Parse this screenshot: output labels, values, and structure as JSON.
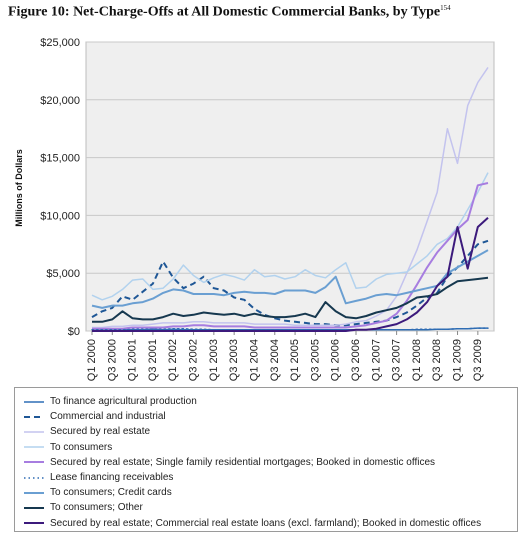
{
  "figure": {
    "title": "Figure 10: Net-Charge-Offs at All Domestic Commercial Banks, by Type",
    "footnote_mark": "154"
  },
  "chart_data": {
    "type": "line",
    "title": "Figure 10: Net-Charge-Offs at All Domestic Commercial Banks, by Type",
    "ylabel": "Millions of Dollars",
    "xlabel": "",
    "ylim": [
      0,
      25000
    ],
    "yticks": [
      0,
      5000,
      10000,
      15000,
      20000,
      25000
    ],
    "ytick_labels": [
      "$0",
      "$5,000",
      "$10,000",
      "$15,000",
      "$20,000",
      "$25,000"
    ],
    "grid": true,
    "legend_position": "bottom",
    "xtick_labels": [
      "Q1 2000",
      "Q3 2000",
      "Q1 2001",
      "Q3 2001",
      "Q1 2002",
      "Q3 2002",
      "Q1 2003",
      "Q3 2003",
      "Q1 2004",
      "Q3 2004",
      "Q1 2005",
      "Q3 2005",
      "Q1 2006",
      "Q3 2006",
      "Q1 2007",
      "Q3 2007",
      "Q1 2008",
      "Q3 2008",
      "Q1 2009",
      "Q3 2009"
    ],
    "x": [
      "Q1 2000",
      "Q2 2000",
      "Q3 2000",
      "Q4 2000",
      "Q1 2001",
      "Q2 2001",
      "Q3 2001",
      "Q4 2001",
      "Q1 2002",
      "Q2 2002",
      "Q3 2002",
      "Q4 2002",
      "Q1 2003",
      "Q2 2003",
      "Q3 2003",
      "Q4 2003",
      "Q1 2004",
      "Q2 2004",
      "Q3 2004",
      "Q4 2004",
      "Q1 2005",
      "Q2 2005",
      "Q3 2005",
      "Q4 2005",
      "Q1 2006",
      "Q2 2006",
      "Q3 2006",
      "Q4 2006",
      "Q1 2007",
      "Q2 2007",
      "Q3 2007",
      "Q4 2007",
      "Q1 2008",
      "Q2 2008",
      "Q3 2008",
      "Q4 2008",
      "Q1 2009",
      "Q2 2009",
      "Q3 2009",
      "Q4 2009"
    ],
    "series": [
      {
        "name": "To finance agricultural production",
        "color": "#2e6fb5",
        "dash": "solid",
        "width": 1.5,
        "values": [
          100,
          100,
          100,
          100,
          100,
          100,
          150,
          100,
          150,
          100,
          100,
          100,
          100,
          100,
          100,
          100,
          100,
          100,
          100,
          100,
          100,
          100,
          100,
          100,
          100,
          100,
          100,
          100,
          100,
          100,
          100,
          100,
          100,
          100,
          150,
          150,
          200,
          200,
          250,
          250
        ]
      },
      {
        "name": "Commercial and industrial",
        "color": "#1f5796",
        "dash": "dashed",
        "width": 2,
        "values": [
          1200,
          1700,
          2000,
          3000,
          2700,
          3400,
          4100,
          6000,
          4600,
          3700,
          4100,
          4700,
          3700,
          3500,
          2900,
          2700,
          1900,
          1400,
          1100,
          900,
          800,
          700,
          600,
          600,
          500,
          500,
          600,
          700,
          800,
          900,
          1200,
          1600,
          2200,
          2900,
          3300,
          4700,
          5500,
          6500,
          7500,
          7800
        ]
      },
      {
        "name": "Secured by real estate",
        "color": "#c3c3ee",
        "dash": "solid",
        "width": 1.5,
        "values": [
          300,
          300,
          400,
          400,
          500,
          500,
          600,
          700,
          700,
          700,
          800,
          800,
          700,
          700,
          700,
          700,
          600,
          600,
          600,
          600,
          500,
          500,
          500,
          500,
          500,
          600,
          800,
          900,
          1300,
          1800,
          3000,
          5000,
          7000,
          9500,
          12000,
          17500,
          14500,
          19500,
          21500,
          22800
        ]
      },
      {
        "name": "To consumers",
        "color": "#b2d2ee",
        "dash": "solid",
        "width": 1.5,
        "values": [
          3100,
          2700,
          3000,
          3600,
          4400,
          4500,
          3600,
          3700,
          4500,
          5700,
          4800,
          4200,
          4600,
          4900,
          4700,
          4400,
          5300,
          4700,
          4800,
          4500,
          4700,
          5300,
          4800,
          4600,
          5300,
          5900,
          3700,
          3800,
          4500,
          4900,
          5000,
          5100,
          5800,
          6500,
          7500,
          8000,
          9000,
          10500,
          12000,
          13700
        ]
      },
      {
        "name": "Secured by real estate; Single family residential mortgages; Booked in domestic offices",
        "color": "#a77de0",
        "dash": "solid",
        "width": 2,
        "values": [
          200,
          200,
          200,
          200,
          300,
          300,
          300,
          300,
          400,
          400,
          500,
          500,
          400,
          400,
          400,
          400,
          300,
          300,
          300,
          300,
          300,
          300,
          300,
          300,
          300,
          300,
          400,
          500,
          700,
          900,
          1500,
          2600,
          4000,
          5500,
          6800,
          7800,
          8800,
          9600,
          12600,
          12800
        ]
      },
      {
        "name": "Lease financing receivables",
        "color": "#2f6bb3",
        "dash": "dotted",
        "width": 1.5,
        "values": [
          100,
          100,
          100,
          100,
          150,
          150,
          150,
          150,
          200,
          200,
          150,
          150,
          100,
          100,
          100,
          100,
          100,
          100,
          100,
          100,
          100,
          100,
          100,
          100,
          100,
          100,
          100,
          100,
          100,
          100,
          100,
          100,
          150,
          150,
          150,
          150,
          200,
          200,
          250,
          250
        ]
      },
      {
        "name": "To consumers; Credit cards",
        "color": "#6a9fd2",
        "dash": "solid",
        "width": 2,
        "values": [
          2200,
          2000,
          2200,
          2200,
          2400,
          2500,
          2800,
          3300,
          3600,
          3500,
          3200,
          3200,
          3200,
          3100,
          3300,
          3400,
          3300,
          3300,
          3200,
          3500,
          3500,
          3500,
          3300,
          3800,
          4700,
          2400,
          2600,
          2800,
          3100,
          3200,
          3100,
          3300,
          3500,
          3700,
          3900,
          5000,
          5500,
          6000,
          6500,
          7000
        ]
      },
      {
        "name": "To consumers; Other",
        "color": "#16384f",
        "dash": "solid",
        "width": 2,
        "values": [
          800,
          800,
          1000,
          1700,
          1100,
          1000,
          1000,
          1200,
          1500,
          1300,
          1400,
          1600,
          1500,
          1400,
          1500,
          1300,
          1500,
          1300,
          1200,
          1200,
          1300,
          1500,
          1200,
          2500,
          1700,
          1200,
          1100,
          1300,
          1600,
          1800,
          2000,
          2400,
          2900,
          3000,
          3200,
          3800,
          4300,
          4400,
          4500,
          4600
        ]
      },
      {
        "name": "Secured by real estate; Commercial real estate loans (excl. farmland); Booked in domestic offices",
        "color": "#3c1a7c",
        "dash": "solid",
        "width": 2,
        "values": [
          0,
          0,
          0,
          0,
          0,
          0,
          0,
          0,
          0,
          0,
          0,
          0,
          0,
          0,
          0,
          0,
          0,
          0,
          0,
          0,
          0,
          0,
          0,
          0,
          0,
          0,
          100,
          100,
          200,
          400,
          600,
          1000,
          1600,
          2500,
          3900,
          4700,
          9000,
          5400,
          9000,
          9800
        ]
      }
    ]
  }
}
